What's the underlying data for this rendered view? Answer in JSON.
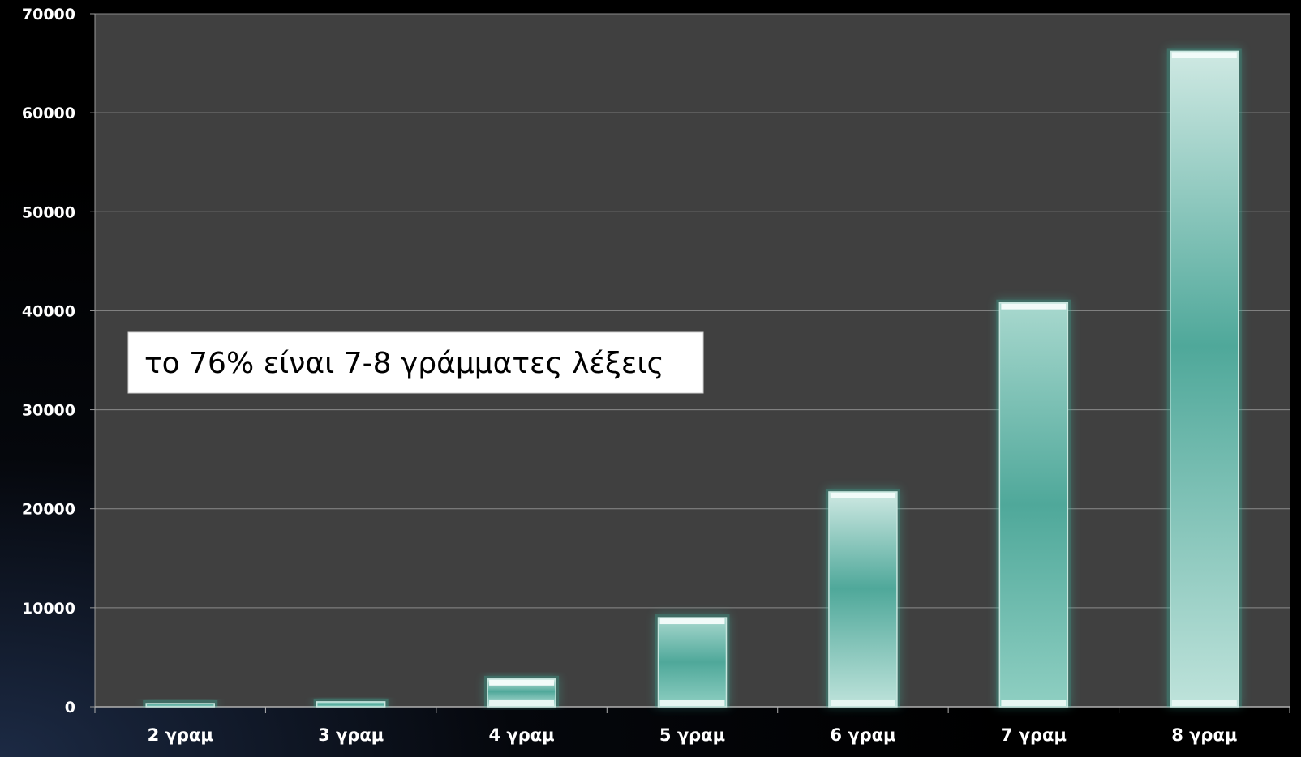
{
  "chart_data": {
    "type": "bar",
    "title": "",
    "xlabel": "",
    "ylabel": "",
    "categories": [
      "2 γραμ",
      "3 γραμ",
      "4 γραμ",
      "5 γραμ",
      "6 γραμ",
      "7 γραμ",
      "8 γραμ"
    ],
    "values": [
      300,
      500,
      2800,
      9000,
      21700,
      40800,
      66200
    ],
    "ylim": [
      0,
      70000
    ],
    "yticks": [
      "0",
      "10000",
      "20000",
      "30000",
      "40000",
      "50000",
      "60000",
      "70000"
    ],
    "grid": true,
    "legend": "none",
    "annotation": "το 76% είναι 7-8 γράμματες λέξεις",
    "colors": {
      "plot_background": "#404040",
      "gridline": "#8a8a8a",
      "bar_core": "#4fa89a",
      "bar_edge": "#c8e6df",
      "bar_glow": "#3fbfa8"
    }
  }
}
